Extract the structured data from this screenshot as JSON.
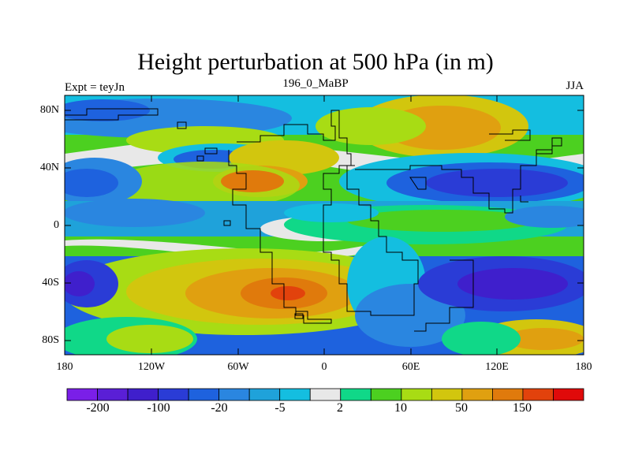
{
  "title": "Height perturbation at 500 hPa (in m)",
  "subtitle_left": "Expt = teyJn",
  "subtitle_center": "196_0_MaBP",
  "subtitle_right": "JJA",
  "y_ticks": [
    "80N",
    "40N",
    "0",
    "40S",
    "80S"
  ],
  "x_ticks": [
    "180",
    "120W",
    "60W",
    "0",
    "60E",
    "120E",
    "180"
  ],
  "colorbar": {
    "colors": [
      "#7A1FE8",
      "#5A1FD6",
      "#3F1FCC",
      "#2A3CD6",
      "#1E62DE",
      "#2A86E0",
      "#1FA2DA",
      "#14BEE0",
      "#E8E8E8",
      "#10D888",
      "#4CD020",
      "#A8DC14",
      "#D2C60E",
      "#E0A010",
      "#E07A0C",
      "#E2420C",
      "#E00A0A"
    ],
    "labels": [
      "-200",
      "-100",
      "-20",
      "-5",
      "2",
      "10",
      "50",
      "150"
    ]
  },
  "chart_data": {
    "type": "heatmap",
    "title": "Height perturbation at 500 hPa (in m)",
    "subtitle_left": "Expt = teyJn",
    "subtitle_center": "196_0_MaBP",
    "subtitle_right": "JJA",
    "xlim": [
      -180,
      180
    ],
    "ylim": [
      -90,
      90
    ],
    "x_tick_labels": [
      "180",
      "120W",
      "60W",
      "0",
      "60E",
      "120E",
      "180"
    ],
    "y_tick_labels": [
      "80N",
      "40N",
      "0",
      "40S",
      "80S"
    ],
    "colorbar_labels": [
      "-200",
      "-100",
      "-20",
      "-5",
      "2",
      "10",
      "50",
      "150"
    ],
    "legend_position": "bottom"
  }
}
